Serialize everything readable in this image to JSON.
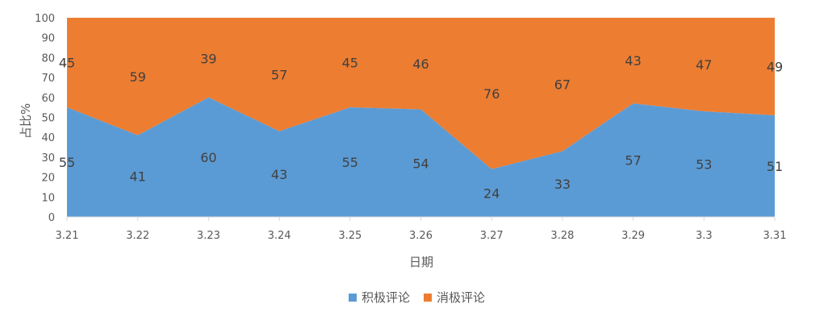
{
  "chart_data": {
    "type": "area",
    "stacked": "percent",
    "categories": [
      "3.21",
      "3.22",
      "3.23",
      "3.24",
      "3.25",
      "3.26",
      "3.27",
      "3.28",
      "3.29",
      "3.3",
      "3.31"
    ],
    "series": [
      {
        "name": "积极评论",
        "color": "#5b9bd5",
        "values": [
          55,
          41,
          60,
          43,
          55,
          54,
          24,
          33,
          57,
          53,
          51
        ]
      },
      {
        "name": "消极评论",
        "color": "#ed7d31",
        "values": [
          45,
          59,
          39,
          57,
          45,
          46,
          76,
          67,
          43,
          47,
          49
        ]
      }
    ],
    "xlabel": "日期",
    "ylabel": "占比%",
    "ylim": [
      0,
      100
    ],
    "yticks": [
      0,
      10,
      20,
      30,
      40,
      50,
      60,
      70,
      80,
      90,
      100
    ],
    "legend_position": "bottom",
    "grid": false
  }
}
